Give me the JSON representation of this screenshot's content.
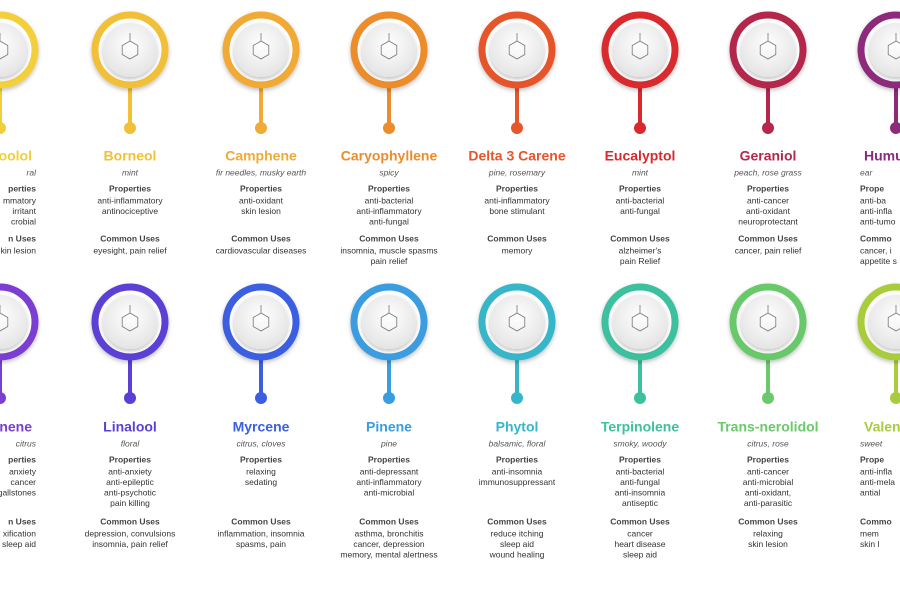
{
  "rows": [
    {
      "cards": [
        {
          "name": "oolol",
          "scent": "ral",
          "properties_heading": "perties",
          "properties": [
            "mmatory",
            "irritant",
            "crobial"
          ],
          "uses_heading": "n Uses",
          "uses": [
            "kin lesion"
          ],
          "color": "#f2cf3a"
        },
        {
          "name": "Borneol",
          "scent": "mint",
          "properties_heading": "Properties",
          "properties": [
            "anti-inflammatory",
            "antinociceptive"
          ],
          "uses_heading": "Common Uses",
          "uses": [
            "eyesight, pain relief"
          ],
          "color": "#f2c037"
        },
        {
          "name": "Camphene",
          "scent": "fir needles, musky earth",
          "properties_heading": "Properties",
          "properties": [
            "anti-oxidant",
            "skin lesion"
          ],
          "uses_heading": "Common Uses",
          "uses": [
            "cardiovascular diseases"
          ],
          "color": "#f0aa36"
        },
        {
          "name": "Caryophyllene",
          "scent": "spicy",
          "properties_heading": "Properties",
          "properties": [
            "anti-bacterial",
            "anti-inflammatory",
            "anti-fungal"
          ],
          "uses_heading": "Common Uses",
          "uses": [
            "insomnia, muscle spasms",
            "pain relief"
          ],
          "color": "#ec8c2c"
        },
        {
          "name": "Delta 3 Carene",
          "scent": "pine, rosemary",
          "properties_heading": "Properties",
          "properties": [
            "anti-inflammatory",
            "bone stimulant"
          ],
          "uses_heading": "Common Uses",
          "uses": [
            "memory"
          ],
          "color": "#e6552b"
        },
        {
          "name": "Eucalyptol",
          "scent": "mint",
          "properties_heading": "Properties",
          "properties": [
            "anti-bacterial",
            "anti-fungal"
          ],
          "uses_heading": "Common Uses",
          "uses": [
            "alzheimer's",
            "pain Relief"
          ],
          "color": "#d9292e"
        },
        {
          "name": "Geraniol",
          "scent": "peach, rose grass",
          "properties_heading": "Properties",
          "properties": [
            "anti-cancer",
            "anti-oxidant",
            "neuroprotectant"
          ],
          "uses_heading": "Common Uses",
          "uses": [
            "cancer, pain relief"
          ],
          "color": "#b5274b"
        },
        {
          "name": "Humu",
          "scent": "ear",
          "properties_heading": "Prope",
          "properties": [
            "anti-ba",
            "anti-infla",
            "anti-tumo"
          ],
          "uses_heading": "Commo",
          "uses": [
            "cancer, i",
            "appetite s"
          ],
          "color": "#8d2a7c"
        }
      ]
    },
    {
      "cards": [
        {
          "name": "nene",
          "scent": "citrus",
          "properties_heading": "perties",
          "properties": [
            "anxiety",
            "cancer",
            "gallstones"
          ],
          "uses_heading": "n Uses",
          "uses": [
            "xification",
            "sleep aid"
          ],
          "color": "#7b3ed2"
        },
        {
          "name": "Linalool",
          "scent": "floral",
          "properties_heading": "Properties",
          "properties": [
            "anti-anxiety",
            "anti-epileptic",
            "anti-psychotic",
            "pain killing"
          ],
          "uses_heading": "Common Uses",
          "uses": [
            "depression, convulsions",
            "insomnia, pain relief"
          ],
          "color": "#5b3fd6"
        },
        {
          "name": "Myrcene",
          "scent": "citrus, cloves",
          "properties_heading": "Properties",
          "properties": [
            "relaxing",
            "sedating"
          ],
          "uses_heading": "Common Uses",
          "uses": [
            "inflammation,  insomnia",
            "spasms, pain"
          ],
          "color": "#3b5fe0"
        },
        {
          "name": "Pinene",
          "scent": "pine",
          "properties_heading": "Properties",
          "properties": [
            "anti-depressant",
            "anti-inflammatory",
            "anti-microbial"
          ],
          "uses_heading": "Common Uses",
          "uses": [
            "asthma, bronchitis",
            "cancer, depression",
            "memory, mental alertness"
          ],
          "color": "#3a9de0"
        },
        {
          "name": "Phytol",
          "scent": "balsamic, floral",
          "properties_heading": "Properties",
          "properties": [
            "anti-insomnia",
            "immunosuppressant"
          ],
          "uses_heading": "Common Uses",
          "uses": [
            "reduce itching",
            "sleep aid",
            "wound healing"
          ],
          "color": "#38b6c9"
        },
        {
          "name": "Terpinolene",
          "scent": "smoky, woody",
          "properties_heading": "Properties",
          "properties": [
            "anti-bacterial",
            "anti-fungal",
            "anti-insomnia",
            "antiseptic"
          ],
          "uses_heading": "Common Uses",
          "uses": [
            "cancer",
            "heart disease",
            "sleep aid"
          ],
          "color": "#3cc09e"
        },
        {
          "name": "Trans-nerolidol",
          "scent": "citrus, rose",
          "properties_heading": "Properties",
          "properties": [
            "anti-cancer",
            "anti-microbial",
            "anti-oxidant,",
            "anti-parasitic"
          ],
          "uses_heading": "Common Uses",
          "uses": [
            "relaxing",
            "skin lesion"
          ],
          "color": "#69c96b"
        },
        {
          "name": "Valen",
          "scent": "sweet",
          "properties_heading": "Prope",
          "properties": [
            "anti-infla",
            "anti-mela",
            "antial"
          ],
          "uses_heading": "Commo",
          "uses": [
            "mem",
            "skin l"
          ],
          "color": "#a9cc3e"
        }
      ]
    }
  ]
}
